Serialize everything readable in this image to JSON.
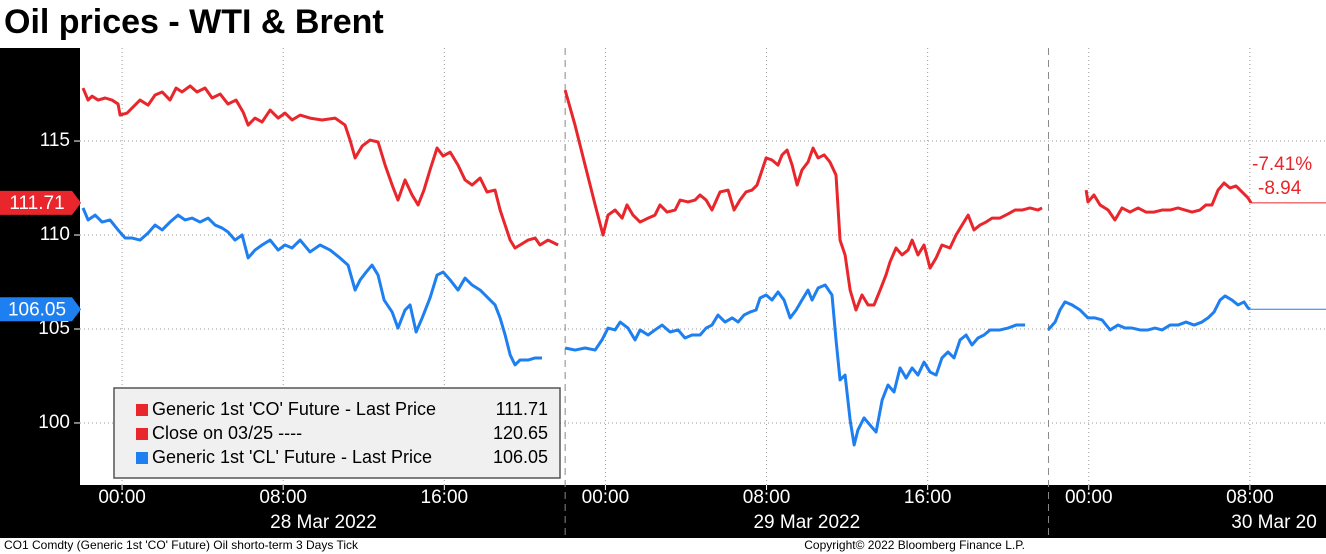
{
  "chart_data": {
    "type": "line",
    "title": "Oil prices - WTI & Brent",
    "footer_left": "CO1 Comdty (Generic 1st 'CO' Future) Oil shorto-term 3 Days  Tick",
    "footer_right": "Copyright© 2022 Bloomberg Finance L.P.",
    "xlim": [
      -2.09,
      59.78
    ],
    "ylim": [
      96.7,
      119.95
    ],
    "yticks": [
      100,
      105,
      110,
      115
    ],
    "xticks": [
      {
        "value": 0,
        "label": "00:00"
      },
      {
        "value": 8,
        "label": "08:00"
      },
      {
        "value": 16,
        "label": "16:00"
      },
      {
        "value": 24,
        "label": "00:00"
      },
      {
        "value": 32,
        "label": "08:00"
      },
      {
        "value": 40,
        "label": "16:00"
      },
      {
        "value": 48,
        "label": "00:00"
      },
      {
        "value": 56,
        "label": "08:00"
      }
    ],
    "date_labels": [
      {
        "value": 10,
        "label": "28 Mar 2022"
      },
      {
        "value": 34,
        "label": "29 Mar 2022"
      },
      {
        "value": 57.2,
        "label": "30 Mar 20"
      }
    ],
    "session_breaks": [
      22,
      46
    ],
    "grid": true,
    "legend": "bottom-left",
    "annotations": [
      "-7.41%",
      "-8.94"
    ],
    "annotation_color": "#e8262b",
    "series": [
      {
        "name": "Generic 1st 'CO' Future - Last Price",
        "color": "#e8262b",
        "last": 111.71,
        "x": [
          -1.94,
          -1.69,
          -1.49,
          -1.19,
          -0.84,
          -0.5,
          -0.2,
          -0.1,
          0.25,
          0.5,
          0.89,
          1.29,
          1.64,
          1.99,
          2.38,
          2.68,
          2.98,
          3.38,
          3.72,
          4.12,
          4.47,
          4.87,
          5.26,
          5.66,
          6.01,
          6.26,
          6.6,
          6.95,
          7.35,
          7.75,
          8.09,
          8.44,
          8.84,
          9.33,
          9.93,
          10.58,
          11.07,
          11.32,
          11.57,
          11.92,
          12.31,
          12.71,
          13.06,
          13.41,
          13.7,
          14.05,
          14.4,
          14.7,
          14.99,
          15.29,
          15.64,
          15.94,
          16.29,
          16.68,
          17.03,
          17.38,
          17.78,
          18.12,
          18.52,
          18.77,
          19.02,
          19.27,
          19.51,
          19.76,
          20.16,
          20.51,
          20.75,
          21.15,
          21.35,
          21.65,
          null,
          22.0,
          22.49,
          22.99,
          23.49,
          23.88,
          24.13,
          24.48,
          24.83,
          25.07,
          25.37,
          25.72,
          26.12,
          26.46,
          26.71,
          27.06,
          27.46,
          27.71,
          28.1,
          28.45,
          28.7,
          29.0,
          29.29,
          29.69,
          30.09,
          30.39,
          30.68,
          30.98,
          31.28,
          31.53,
          31.78,
          31.98,
          32.27,
          32.57,
          32.77,
          33.02,
          33.27,
          33.52,
          33.76,
          34.06,
          34.31,
          34.56,
          34.86,
          35.15,
          35.45,
          35.65,
          35.9,
          36.15,
          36.44,
          36.74,
          37.04,
          37.34,
          37.64,
          37.93,
          38.13,
          38.43,
          38.73,
          39.03,
          39.23,
          39.52,
          39.82,
          40.12,
          40.42,
          40.71,
          41.11,
          41.41,
          41.71,
          42.01,
          42.3,
          42.6,
          42.9,
          43.2,
          43.59,
          43.99,
          44.34,
          44.69,
          45.08,
          45.48,
          45.68,
          null,
          47.87,
          47.96,
          48.26,
          48.56,
          48.96,
          49.3,
          49.65,
          50.05,
          50.45,
          50.84,
          51.24,
          51.64,
          52.04,
          52.43,
          52.78,
          53.13,
          53.52,
          53.82,
          54.12,
          54.42,
          54.72,
          55.01,
          55.31,
          55.61,
          55.91,
          56.06
        ],
        "values": [
          117.82,
          117.18,
          117.39,
          117.18,
          117.29,
          117.18,
          116.97,
          116.38,
          116.49,
          116.76,
          117.18,
          116.91,
          117.45,
          117.61,
          117.18,
          117.82,
          117.61,
          117.93,
          117.61,
          117.82,
          117.29,
          117.5,
          116.97,
          117.18,
          116.54,
          115.85,
          116.22,
          116.01,
          116.65,
          116.22,
          116.49,
          116.12,
          116.38,
          116.22,
          116.12,
          116.22,
          115.85,
          115.05,
          114.1,
          114.73,
          115.05,
          114.95,
          113.72,
          112.66,
          111.86,
          112.93,
          112.13,
          111.6,
          112.39,
          113.46,
          114.63,
          114.2,
          114.41,
          113.72,
          112.93,
          112.66,
          113.03,
          112.29,
          112.39,
          111.33,
          110.53,
          109.73,
          109.31,
          109.47,
          109.73,
          109.84,
          109.47,
          109.73,
          109.63,
          109.47,
          null,
          117.71,
          115.85,
          113.72,
          111.6,
          110.0,
          111.06,
          111.33,
          110.9,
          111.6,
          111.06,
          110.69,
          110.9,
          111.06,
          111.6,
          111.22,
          111.33,
          111.86,
          111.76,
          111.86,
          112.13,
          111.86,
          111.33,
          112.29,
          112.39,
          111.33,
          111.86,
          112.29,
          112.39,
          112.66,
          113.46,
          114.1,
          113.99,
          113.72,
          114.26,
          114.52,
          113.72,
          112.66,
          113.46,
          113.88,
          114.63,
          114.1,
          114.26,
          113.88,
          113.19,
          109.73,
          108.94,
          107.07,
          106.01,
          106.81,
          106.28,
          106.28,
          107.07,
          107.87,
          108.56,
          109.31,
          108.94,
          109.2,
          109.73,
          108.94,
          109.47,
          108.24,
          108.78,
          109.47,
          109.31,
          110.0,
          110.53,
          111.06,
          110.27,
          110.53,
          110.69,
          110.9,
          110.9,
          111.12,
          111.33,
          111.33,
          111.44,
          111.33,
          111.44,
          null,
          112.39,
          111.76,
          112.13,
          111.6,
          111.33,
          110.8,
          111.44,
          111.22,
          111.44,
          111.22,
          111.22,
          111.33,
          111.33,
          111.44,
          111.33,
          111.22,
          111.33,
          111.6,
          111.6,
          112.39,
          112.77,
          112.5,
          112.61,
          112.29,
          111.97,
          111.71
        ]
      },
      {
        "name": "Close on 03/25 ----",
        "color": "#e8262b",
        "last": 120.65
      },
      {
        "name": "Generic 1st 'CL' Future - Last Price",
        "color": "#1e7ff0",
        "last": 106.05,
        "x": [
          -1.94,
          -1.69,
          -1.34,
          -0.99,
          -0.6,
          -0.2,
          0.15,
          0.5,
          0.89,
          1.29,
          1.64,
          1.99,
          2.38,
          2.78,
          3.13,
          3.48,
          3.87,
          4.27,
          4.62,
          4.97,
          5.26,
          5.61,
          5.96,
          6.26,
          6.6,
          6.95,
          7.35,
          7.75,
          8.09,
          8.44,
          8.84,
          9.33,
          9.83,
          10.33,
          10.82,
          11.22,
          11.57,
          11.82,
          12.12,
          12.41,
          12.71,
          13.01,
          13.41,
          13.7,
          14.05,
          14.3,
          14.6,
          14.9,
          15.29,
          15.64,
          15.94,
          16.29,
          16.68,
          17.03,
          17.38,
          17.78,
          18.17,
          18.52,
          18.77,
          19.02,
          19.27,
          19.51,
          19.76,
          20.16,
          20.51,
          20.85,
          null,
          22.0,
          22.49,
          22.99,
          23.49,
          23.83,
          24.13,
          24.48,
          24.73,
          25.12,
          25.47,
          25.72,
          26.12,
          26.46,
          26.81,
          27.21,
          27.61,
          27.95,
          28.3,
          28.7,
          29.0,
          29.29,
          29.59,
          29.94,
          30.29,
          30.59,
          30.88,
          31.18,
          31.48,
          31.68,
          31.98,
          32.27,
          32.57,
          32.87,
          33.17,
          33.47,
          33.76,
          34.06,
          34.26,
          34.56,
          34.91,
          35.25,
          35.45,
          35.65,
          35.9,
          36.15,
          36.35,
          36.54,
          36.84,
          37.14,
          37.44,
          37.74,
          38.03,
          38.33,
          38.63,
          38.93,
          39.23,
          39.52,
          39.82,
          40.12,
          40.42,
          40.71,
          41.01,
          41.31,
          41.61,
          41.91,
          42.2,
          42.5,
          42.8,
          43.1,
          43.59,
          43.99,
          44.39,
          44.84,
          null,
          45.98,
          46.33,
          46.57,
          46.82,
          47.17,
          47.57,
          47.96,
          48.31,
          48.66,
          49.06,
          49.45,
          49.8,
          50.15,
          50.55,
          50.94,
          51.29,
          51.64,
          52.04,
          52.43,
          52.83,
          53.23,
          53.62,
          53.92,
          54.22,
          54.52,
          54.77,
          55.11,
          55.41,
          55.71,
          55.91,
          56.01
        ],
        "values": [
          111.44,
          110.8,
          111.06,
          110.69,
          110.8,
          110.27,
          109.84,
          109.84,
          109.73,
          110.11,
          110.53,
          110.27,
          110.69,
          111.06,
          110.8,
          110.9,
          110.69,
          110.9,
          110.53,
          110.37,
          110.16,
          109.73,
          110.0,
          108.78,
          109.2,
          109.47,
          109.73,
          109.2,
          109.47,
          109.31,
          109.73,
          109.1,
          109.47,
          109.2,
          108.78,
          108.4,
          107.07,
          107.61,
          108.03,
          108.4,
          107.87,
          106.54,
          105.9,
          105.05,
          106.01,
          106.28,
          104.84,
          105.59,
          106.65,
          107.87,
          108.03,
          107.61,
          107.07,
          107.71,
          107.34,
          107.07,
          106.65,
          106.28,
          105.59,
          104.68,
          103.62,
          103.09,
          103.35,
          103.35,
          103.46,
          103.46,
          null,
          103.99,
          103.88,
          103.99,
          103.88,
          104.42,
          105.05,
          104.95,
          105.37,
          105.05,
          104.42,
          104.95,
          104.68,
          104.95,
          105.21,
          104.84,
          104.95,
          104.52,
          104.68,
          104.68,
          105.05,
          105.21,
          105.74,
          105.37,
          105.59,
          105.37,
          105.74,
          105.9,
          106.01,
          106.65,
          106.81,
          106.54,
          106.97,
          106.54,
          105.59,
          106.01,
          106.54,
          107.07,
          106.54,
          107.18,
          107.34,
          106.81,
          104.42,
          102.29,
          102.55,
          100.16,
          98.83,
          99.63,
          100.27,
          99.89,
          99.52,
          101.22,
          102.02,
          101.65,
          102.93,
          102.39,
          102.93,
          102.55,
          103.24,
          102.71,
          102.55,
          103.46,
          103.78,
          103.46,
          104.42,
          104.68,
          104.15,
          104.52,
          104.68,
          104.95,
          104.95,
          105.05,
          105.21,
          105.21,
          null,
          104.95,
          105.37,
          106.01,
          106.44,
          106.28,
          106.01,
          105.59,
          105.59,
          105.48,
          104.95,
          105.21,
          105.05,
          105.05,
          104.95,
          104.95,
          105.05,
          104.95,
          105.21,
          105.21,
          105.37,
          105.21,
          105.37,
          105.59,
          105.9,
          106.54,
          106.76,
          106.54,
          106.28,
          106.44,
          106.12,
          106.05
        ]
      }
    ]
  }
}
